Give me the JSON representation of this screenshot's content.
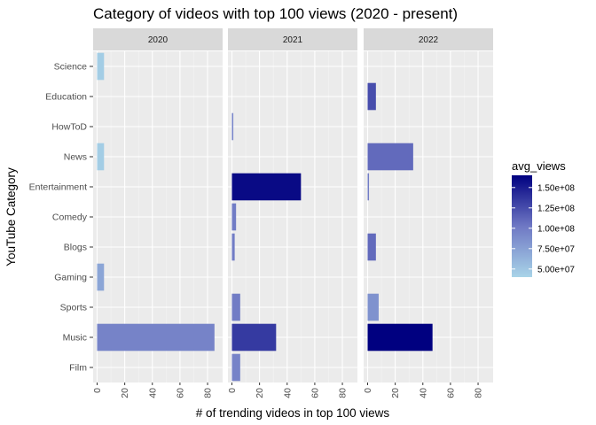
{
  "chart_data": {
    "type": "bar",
    "orientation": "horizontal",
    "title": "Category of videos with top 100 views (2020 - present)",
    "xlabel": "# of trending videos in top 100 views",
    "ylabel": "YouTube Category",
    "xlim": [
      0,
      88
    ],
    "x_ticks": [
      0,
      20,
      40,
      60,
      80
    ],
    "categories": [
      "Science",
      "Education",
      "HowToD",
      "News",
      "Entertainment",
      "Comedy",
      "Blogs",
      "Gaming",
      "Sports",
      "Music",
      "Film"
    ],
    "grid": true,
    "legend": {
      "title": "avg_views",
      "placement": "right",
      "min": 40000000,
      "max": 165000000,
      "ticks": [
        50000000,
        75000000,
        100000000,
        125000000,
        150000000
      ],
      "tick_labels": [
        "5.00e+07",
        "7.50e+07",
        "1.00e+08",
        "1.25e+08",
        "1.50e+08"
      ],
      "low_color": "#a8d4e8",
      "high_color": "#000080"
    },
    "panels": [
      {
        "label": "2020",
        "bars": [
          {
            "category": "Science",
            "value": 5,
            "avg_views": 45000000
          },
          {
            "category": "News",
            "value": 5,
            "avg_views": 45000000
          },
          {
            "category": "Gaming",
            "value": 5,
            "avg_views": 72000000
          },
          {
            "category": "Music",
            "value": 85,
            "avg_views": 95000000
          }
        ]
      },
      {
        "label": "2021",
        "bars": [
          {
            "category": "HowToD",
            "value": 1,
            "avg_views": 95000000
          },
          {
            "category": "Entertainment",
            "value": 50,
            "avg_views": 160000000
          },
          {
            "category": "Comedy",
            "value": 3,
            "avg_views": 100000000
          },
          {
            "category": "Blogs",
            "value": 2,
            "avg_views": 100000000
          },
          {
            "category": "Sports",
            "value": 6,
            "avg_views": 100000000
          },
          {
            "category": "Music",
            "value": 32,
            "avg_views": 135000000
          },
          {
            "category": "Film",
            "value": 6,
            "avg_views": 95000000
          }
        ]
      },
      {
        "label": "2022",
        "bars": [
          {
            "category": "Education",
            "value": 6,
            "avg_views": 125000000
          },
          {
            "category": "News",
            "value": 33,
            "avg_views": 110000000
          },
          {
            "category": "Entertainment",
            "value": 1,
            "avg_views": 100000000
          },
          {
            "category": "Blogs",
            "value": 6,
            "avg_views": 110000000
          },
          {
            "category": "Sports",
            "value": 8,
            "avg_views": 85000000
          },
          {
            "category": "Music",
            "value": 47,
            "avg_views": 165000000
          }
        ]
      }
    ]
  }
}
